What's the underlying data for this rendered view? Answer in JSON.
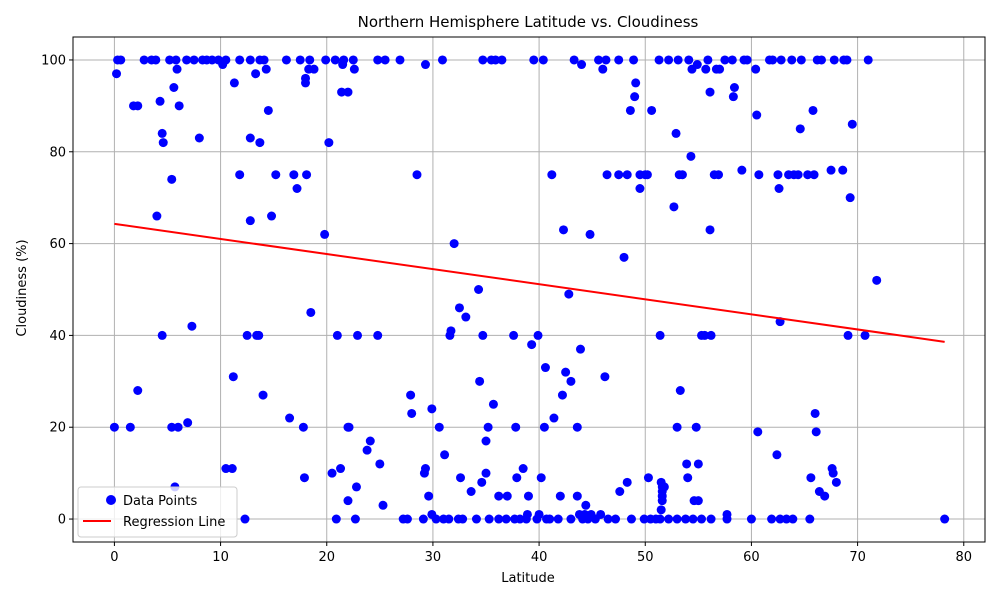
{
  "chart_data": {
    "type": "scatter",
    "title": "Northern Hemisphere Latitude vs. Cloudiness",
    "xlabel": "Latitude",
    "ylabel": "Cloudiness (%)",
    "xlim": [
      -3.9,
      82.0
    ],
    "ylim": [
      -5,
      105
    ],
    "xticks": [
      0,
      10,
      20,
      30,
      40,
      50,
      60,
      70,
      80
    ],
    "yticks": [
      0,
      20,
      40,
      60,
      80,
      100
    ],
    "grid": true,
    "legend": "lower-left",
    "colors": {
      "points": "#0000ff",
      "line": "#ff0000",
      "grid": "#b0b0b0"
    },
    "series": [
      {
        "name": "Data Points",
        "kind": "scatter",
        "points": [
          [
            0.0,
            20
          ],
          [
            0.2,
            97
          ],
          [
            0.3,
            100
          ],
          [
            0.6,
            100
          ],
          [
            1.5,
            20
          ],
          [
            1.8,
            90
          ],
          [
            2.2,
            90
          ],
          [
            2.2,
            28
          ],
          [
            2.8,
            100
          ],
          [
            3.5,
            100
          ],
          [
            3.9,
            100
          ],
          [
            4.0,
            66
          ],
          [
            4.3,
            91
          ],
          [
            4.5,
            84
          ],
          [
            4.6,
            82
          ],
          [
            4.5,
            40
          ],
          [
            5.2,
            100
          ],
          [
            5.4,
            74
          ],
          [
            5.4,
            20
          ],
          [
            5.6,
            94
          ],
          [
            5.8,
            100
          ],
          [
            5.9,
            98
          ],
          [
            6.0,
            20
          ],
          [
            5.7,
            7
          ],
          [
            6.1,
            90
          ],
          [
            6.8,
            100
          ],
          [
            6.9,
            21
          ],
          [
            7.3,
            42
          ],
          [
            7.5,
            100
          ],
          [
            8.0,
            83
          ],
          [
            8.3,
            100
          ],
          [
            8.7,
            100
          ],
          [
            9.2,
            100
          ],
          [
            9.8,
            100
          ],
          [
            10.2,
            99
          ],
          [
            10.5,
            100
          ],
          [
            10.5,
            11
          ],
          [
            11.1,
            11
          ],
          [
            11.3,
            95
          ],
          [
            11.2,
            31
          ],
          [
            11.8,
            75
          ],
          [
            11.8,
            100
          ],
          [
            12.3,
            0
          ],
          [
            12.5,
            40
          ],
          [
            12.8,
            83
          ],
          [
            12.8,
            65
          ],
          [
            12.8,
            100
          ],
          [
            13.3,
            97
          ],
          [
            13.4,
            40
          ],
          [
            13.6,
            40
          ],
          [
            13.7,
            100
          ],
          [
            14.1,
            100
          ],
          [
            13.7,
            82
          ],
          [
            14.0,
            27
          ],
          [
            14.3,
            98
          ],
          [
            14.5,
            89
          ],
          [
            14.8,
            66
          ],
          [
            15.2,
            75
          ],
          [
            16.2,
            100
          ],
          [
            16.5,
            22
          ],
          [
            16.9,
            75
          ],
          [
            17.2,
            72
          ],
          [
            17.5,
            100
          ],
          [
            17.8,
            20
          ],
          [
            17.9,
            9
          ],
          [
            18.0,
            96
          ],
          [
            18.0,
            95
          ],
          [
            18.1,
            75
          ],
          [
            18.3,
            98
          ],
          [
            18.4,
            100
          ],
          [
            18.5,
            45
          ],
          [
            18.8,
            98
          ],
          [
            19.8,
            62
          ],
          [
            19.9,
            100
          ],
          [
            20.2,
            82
          ],
          [
            20.5,
            10
          ],
          [
            20.8,
            100
          ],
          [
            20.9,
            0
          ],
          [
            21.0,
            40
          ],
          [
            21.3,
            11
          ],
          [
            21.5,
            99
          ],
          [
            21.4,
            93
          ],
          [
            21.6,
            100
          ],
          [
            22.0,
            93
          ],
          [
            22.0,
            20
          ],
          [
            22.1,
            20
          ],
          [
            22.0,
            4
          ],
          [
            22.5,
            100
          ],
          [
            22.6,
            98
          ],
          [
            22.7,
            0
          ],
          [
            22.9,
            40
          ],
          [
            22.8,
            7
          ],
          [
            23.8,
            15
          ],
          [
            24.1,
            17
          ],
          [
            24.8,
            100
          ],
          [
            24.8,
            40
          ],
          [
            25.0,
            12
          ],
          [
            25.3,
            3
          ],
          [
            25.5,
            100
          ],
          [
            26.9,
            100
          ],
          [
            27.2,
            0
          ],
          [
            27.6,
            0
          ],
          [
            27.9,
            27
          ],
          [
            28.0,
            23
          ],
          [
            28.5,
            75
          ],
          [
            29.1,
            0
          ],
          [
            29.3,
            99
          ],
          [
            29.3,
            11
          ],
          [
            29.2,
            10
          ],
          [
            29.6,
            5
          ],
          [
            29.9,
            24
          ],
          [
            29.9,
            1
          ],
          [
            30.3,
            0
          ],
          [
            30.6,
            20
          ],
          [
            30.9,
            100
          ],
          [
            31.1,
            14
          ],
          [
            31.0,
            0
          ],
          [
            31.5,
            0
          ],
          [
            31.6,
            40
          ],
          [
            31.7,
            41
          ],
          [
            32.0,
            60
          ],
          [
            32.4,
            0
          ],
          [
            32.5,
            46
          ],
          [
            32.6,
            9
          ],
          [
            32.8,
            0
          ],
          [
            33.1,
            44
          ],
          [
            33.6,
            6
          ],
          [
            34.1,
            0
          ],
          [
            34.3,
            50
          ],
          [
            34.4,
            30
          ],
          [
            34.6,
            8
          ],
          [
            34.7,
            40
          ],
          [
            34.7,
            100
          ],
          [
            35.0,
            10
          ],
          [
            35.0,
            17
          ],
          [
            35.2,
            20
          ],
          [
            35.3,
            0
          ],
          [
            35.5,
            100
          ],
          [
            35.7,
            25
          ],
          [
            35.9,
            100
          ],
          [
            36.2,
            5
          ],
          [
            36.2,
            0
          ],
          [
            36.5,
            100
          ],
          [
            36.9,
            0
          ],
          [
            37.0,
            5
          ],
          [
            37.6,
            40
          ],
          [
            37.7,
            0
          ],
          [
            37.8,
            20
          ],
          [
            37.9,
            9
          ],
          [
            38.2,
            0
          ],
          [
            38.5,
            11
          ],
          [
            38.8,
            0
          ],
          [
            38.9,
            1
          ],
          [
            39.0,
            5
          ],
          [
            39.3,
            38
          ],
          [
            39.5,
            100
          ],
          [
            39.8,
            0
          ],
          [
            39.9,
            40
          ],
          [
            40.0,
            1
          ],
          [
            40.2,
            9
          ],
          [
            40.4,
            100
          ],
          [
            40.5,
            20
          ],
          [
            40.6,
            33
          ],
          [
            40.7,
            0
          ],
          [
            41.0,
            0
          ],
          [
            41.2,
            75
          ],
          [
            41.4,
            22
          ],
          [
            41.8,
            0
          ],
          [
            42.0,
            5
          ],
          [
            42.2,
            27
          ],
          [
            42.3,
            63
          ],
          [
            42.5,
            32
          ],
          [
            42.8,
            49
          ],
          [
            43.0,
            30
          ],
          [
            43.0,
            0
          ],
          [
            43.3,
            100
          ],
          [
            43.6,
            5
          ],
          [
            43.6,
            20
          ],
          [
            43.9,
            37
          ],
          [
            44.0,
            99
          ],
          [
            43.8,
            1
          ],
          [
            44.1,
            0
          ],
          [
            44.3,
            1
          ],
          [
            44.4,
            3
          ],
          [
            44.6,
            0
          ],
          [
            44.8,
            62
          ],
          [
            44.9,
            1
          ],
          [
            45.3,
            0
          ],
          [
            45.6,
            100
          ],
          [
            45.8,
            1
          ],
          [
            46.0,
            98
          ],
          [
            46.2,
            31
          ],
          [
            46.3,
            100
          ],
          [
            46.4,
            75
          ],
          [
            46.5,
            0
          ],
          [
            47.2,
            0
          ],
          [
            47.5,
            100
          ],
          [
            47.5,
            75
          ],
          [
            47.6,
            6
          ],
          [
            48.0,
            57
          ],
          [
            48.3,
            8
          ],
          [
            48.3,
            75
          ],
          [
            48.6,
            89
          ],
          [
            48.7,
            0
          ],
          [
            48.9,
            100
          ],
          [
            49.0,
            92
          ],
          [
            49.1,
            95
          ],
          [
            49.5,
            72
          ],
          [
            49.5,
            75
          ],
          [
            49.9,
            0
          ],
          [
            50.0,
            75
          ],
          [
            50.2,
            75
          ],
          [
            50.3,
            9
          ],
          [
            50.5,
            0
          ],
          [
            50.6,
            89
          ],
          [
            51.0,
            0
          ],
          [
            51.3,
            100
          ],
          [
            51.4,
            40
          ],
          [
            51.4,
            0
          ],
          [
            51.5,
            8
          ],
          [
            51.6,
            7
          ],
          [
            51.6,
            6
          ],
          [
            51.6,
            5
          ],
          [
            51.6,
            4
          ],
          [
            51.5,
            2
          ],
          [
            51.8,
            7
          ],
          [
            52.2,
            100
          ],
          [
            52.2,
            0
          ],
          [
            52.7,
            68
          ],
          [
            52.9,
            84
          ],
          [
            53.0,
            20
          ],
          [
            53.0,
            0
          ],
          [
            53.1,
            100
          ],
          [
            53.2,
            75
          ],
          [
            53.3,
            28
          ],
          [
            53.5,
            75
          ],
          [
            53.8,
            0
          ],
          [
            53.9,
            12
          ],
          [
            54.0,
            9
          ],
          [
            54.1,
            100
          ],
          [
            54.3,
            79
          ],
          [
            54.4,
            98
          ],
          [
            54.5,
            0
          ],
          [
            54.6,
            4
          ],
          [
            54.8,
            20
          ],
          [
            54.9,
            99
          ],
          [
            55.0,
            12
          ],
          [
            55.0,
            4
          ],
          [
            55.3,
            40
          ],
          [
            55.3,
            0
          ],
          [
            55.6,
            40
          ],
          [
            55.7,
            98
          ],
          [
            55.9,
            100
          ],
          [
            56.1,
            93
          ],
          [
            56.1,
            63
          ],
          [
            56.2,
            40
          ],
          [
            56.2,
            0
          ],
          [
            56.5,
            75
          ],
          [
            56.7,
            98
          ],
          [
            56.9,
            75
          ],
          [
            57.0,
            98
          ],
          [
            57.5,
            100
          ],
          [
            57.7,
            0
          ],
          [
            57.7,
            1
          ],
          [
            58.2,
            100
          ],
          [
            58.3,
            92
          ],
          [
            58.4,
            94
          ],
          [
            59.1,
            76
          ],
          [
            59.3,
            100
          ],
          [
            59.6,
            100
          ],
          [
            60.0,
            0
          ],
          [
            60.4,
            98
          ],
          [
            60.5,
            88
          ],
          [
            60.6,
            19
          ],
          [
            60.7,
            75
          ],
          [
            61.7,
            100
          ],
          [
            61.9,
            0
          ],
          [
            62.0,
            100
          ],
          [
            62.4,
            14
          ],
          [
            62.5,
            75
          ],
          [
            62.6,
            72
          ],
          [
            62.7,
            43
          ],
          [
            62.7,
            0
          ],
          [
            62.8,
            100
          ],
          [
            63.3,
            0
          ],
          [
            63.5,
            75
          ],
          [
            63.8,
            100
          ],
          [
            63.9,
            0
          ],
          [
            64.0,
            75
          ],
          [
            64.4,
            75
          ],
          [
            64.6,
            85
          ],
          [
            64.7,
            100
          ],
          [
            65.3,
            75
          ],
          [
            65.5,
            0
          ],
          [
            65.6,
            9
          ],
          [
            65.8,
            89
          ],
          [
            65.9,
            75
          ],
          [
            66.0,
            23
          ],
          [
            66.1,
            19
          ],
          [
            66.2,
            100
          ],
          [
            66.4,
            6
          ],
          [
            66.6,
            100
          ],
          [
            66.9,
            5
          ],
          [
            67.5,
            76
          ],
          [
            67.6,
            11
          ],
          [
            67.7,
            10
          ],
          [
            67.8,
            100
          ],
          [
            68.0,
            8
          ],
          [
            68.6,
            76
          ],
          [
            68.7,
            100
          ],
          [
            69.0,
            100
          ],
          [
            69.1,
            40
          ],
          [
            69.3,
            70
          ],
          [
            69.5,
            86
          ],
          [
            70.7,
            40
          ],
          [
            71.0,
            100
          ],
          [
            71.8,
            52
          ],
          [
            78.2,
            0
          ]
        ]
      },
      {
        "name": "Regression Line",
        "kind": "line",
        "points": [
          [
            0.0,
            64.3
          ],
          [
            78.2,
            38.6
          ]
        ]
      }
    ]
  }
}
